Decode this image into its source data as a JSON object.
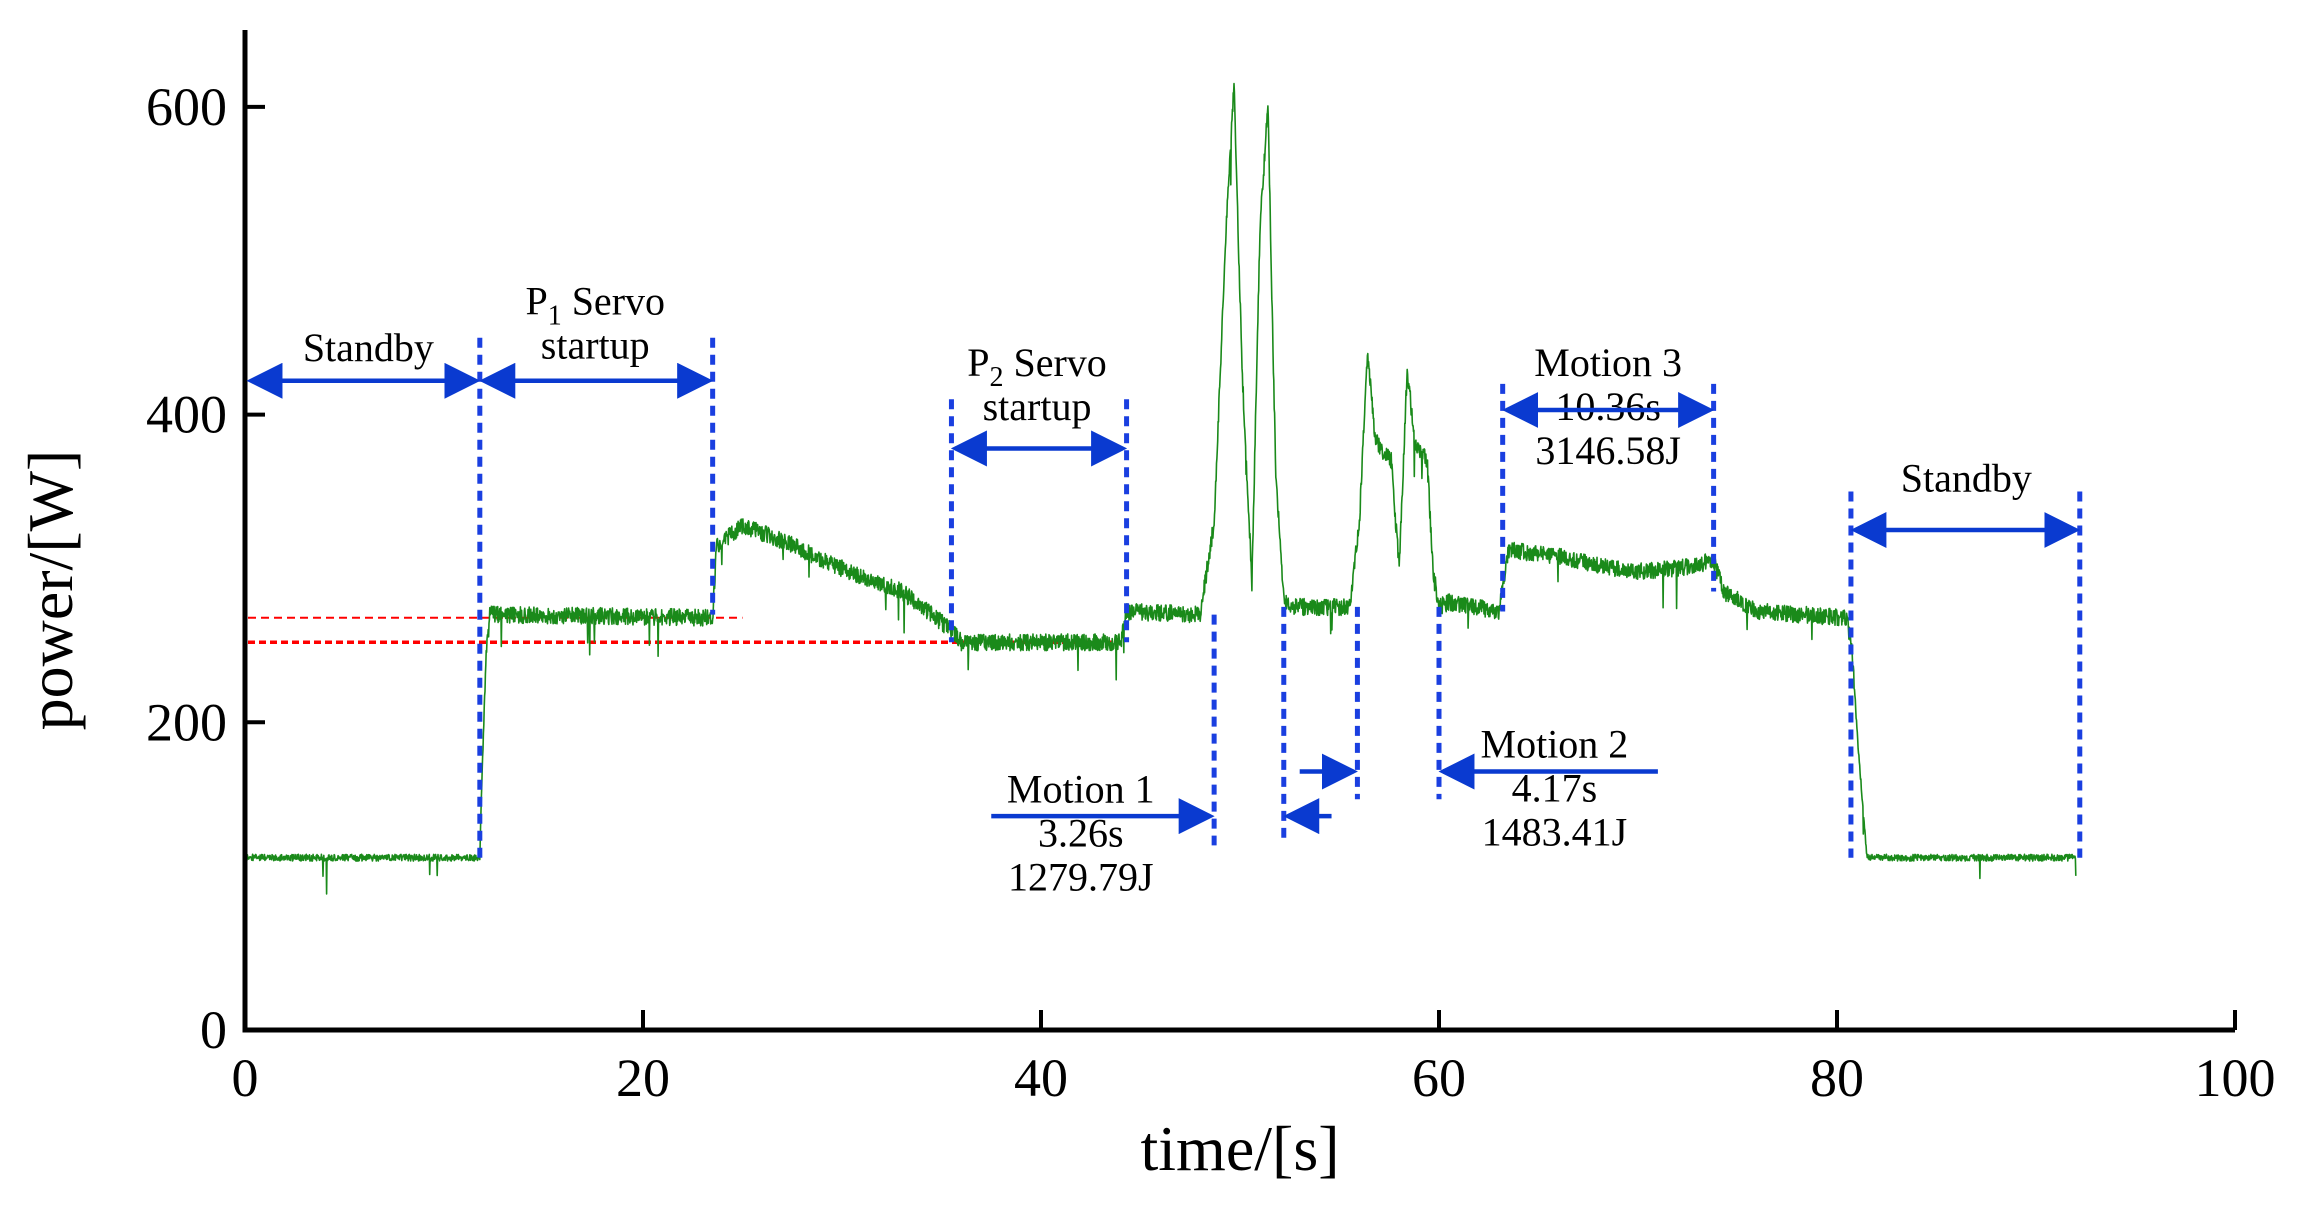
{
  "chart_data": {
    "type": "line",
    "title": "",
    "xlabel": "time/[s]",
    "ylabel": "power/[W]",
    "xlim": [
      0,
      100
    ],
    "ylim": [
      0,
      650
    ],
    "x_ticks": [
      0,
      20,
      40,
      60,
      80,
      100
    ],
    "y_ticks": [
      0,
      200,
      400,
      600
    ],
    "grid": false,
    "series": [
      {
        "name": "power",
        "color": "#1a8a1a",
        "x": [
          0,
          11.8,
          11.9,
          12.1,
          12.3,
          23.5,
          23.7,
          25,
          27,
          30,
          33,
          35.5,
          36,
          44,
          44.3,
          48,
          48.7,
          49.3,
          49.7,
          50.1,
          50.6,
          51.0,
          51.4,
          51.8,
          52.2,
          52.8,
          55.5,
          56.0,
          56.4,
          56.8,
          57.2,
          57.6,
          58.0,
          58.4,
          58.8,
          59.4,
          59.7,
          60.0,
          60.5,
          63.0,
          63.5,
          66,
          68,
          70,
          72,
          73.8,
          74.3,
          76,
          80.5,
          80.8,
          81.0,
          81.5,
          92
        ],
        "y": [
          112,
          112,
          160,
          240,
          270,
          268,
          315,
          328,
          318,
          300,
          285,
          260,
          252,
          252,
          272,
          270,
          330,
          520,
          615,
          430,
          290,
          520,
          600,
          360,
          280,
          275,
          275,
          330,
          440,
          385,
          375,
          370,
          300,
          430,
          380,
          370,
          300,
          275,
          278,
          272,
          312,
          308,
          302,
          298,
          300,
          305,
          285,
          272,
          268,
          240,
          195,
          112,
          112
        ]
      }
    ],
    "reference_lines": [
      {
        "axis": "y",
        "value": 268,
        "x_range": [
          0,
          25
        ],
        "color": "#ff0000",
        "style": "dashed"
      },
      {
        "axis": "y",
        "value": 252,
        "x_range": [
          0,
          44
        ],
        "color": "#ff0000",
        "style": "dashed"
      }
    ],
    "phase_boundaries": [
      {
        "x": 11.8,
        "y_range": [
          112,
          450
        ]
      },
      {
        "x": 23.5,
        "y_range": [
          270,
          450
        ]
      },
      {
        "x": 35.5,
        "y_range": [
          252,
          410
        ]
      },
      {
        "x": 44.3,
        "y_range": [
          252,
          410
        ]
      },
      {
        "x": 48.7,
        "y_range": [
          120,
          270
        ]
      },
      {
        "x": 52.2,
        "y_range": [
          125,
          275
        ]
      },
      {
        "x": 55.9,
        "y_range": [
          150,
          275
        ]
      },
      {
        "x": 60.0,
        "y_range": [
          150,
          275
        ]
      },
      {
        "x": 63.2,
        "y_range": [
          272,
          420
        ]
      },
      {
        "x": 73.8,
        "y_range": [
          285,
          420
        ]
      },
      {
        "x": 80.7,
        "y_range": [
          112,
          350
        ]
      },
      {
        "x": 92.2,
        "y_range": [
          112,
          350
        ]
      }
    ],
    "annotations": [
      {
        "id": "standby-1",
        "lines": [
          "Standby"
        ],
        "x": 6.2,
        "y": 435,
        "arrow": {
          "type": "double",
          "x1": 0.3,
          "x2": 11.6,
          "y": 422
        }
      },
      {
        "id": "p1-servo",
        "lines": [
          "P",
          "1",
          " Servo",
          "startup"
        ],
        "x": 17.6,
        "y": 465,
        "arrow": {
          "type": "double",
          "x1": 12.0,
          "x2": 23.3,
          "y": 422
        }
      },
      {
        "id": "p2-servo",
        "lines": [
          "P",
          "2",
          " Servo",
          "startup"
        ],
        "x": 39.8,
        "y": 425,
        "arrow": {
          "type": "double",
          "x1": 35.7,
          "x2": 44.1,
          "y": 378
        }
      },
      {
        "id": "motion-3",
        "lines": [
          "Motion 3",
          "10.36s",
          "3146.58J"
        ],
        "x": 68.5,
        "y": 425,
        "arrow": {
          "type": "double",
          "x1": 63.4,
          "x2": 73.6,
          "y": 403
        }
      },
      {
        "id": "standby-2",
        "lines": [
          "Standby"
        ],
        "x": 86.5,
        "y": 350,
        "arrow": {
          "type": "double",
          "x1": 80.9,
          "x2": 92.0,
          "y": 325
        }
      },
      {
        "id": "motion-1",
        "lines": [
          "Motion 1",
          "3.26s",
          "1279.79J"
        ],
        "x": 42.0,
        "y": 148,
        "arrow": {
          "type": "inward",
          "left_from": 37.5,
          "left_to": 48.5,
          "right_from": 54.6,
          "right_to": 52.4,
          "y": 139
        }
      },
      {
        "id": "motion-2",
        "lines": [
          "Motion 2",
          "4.17s",
          "1483.41J"
        ],
        "x": 65.8,
        "y": 177,
        "arrow": {
          "type": "inward",
          "left_from": 53.0,
          "left_to": 55.7,
          "right_from": 71.0,
          "right_to": 60.2,
          "y": 168
        }
      }
    ]
  }
}
